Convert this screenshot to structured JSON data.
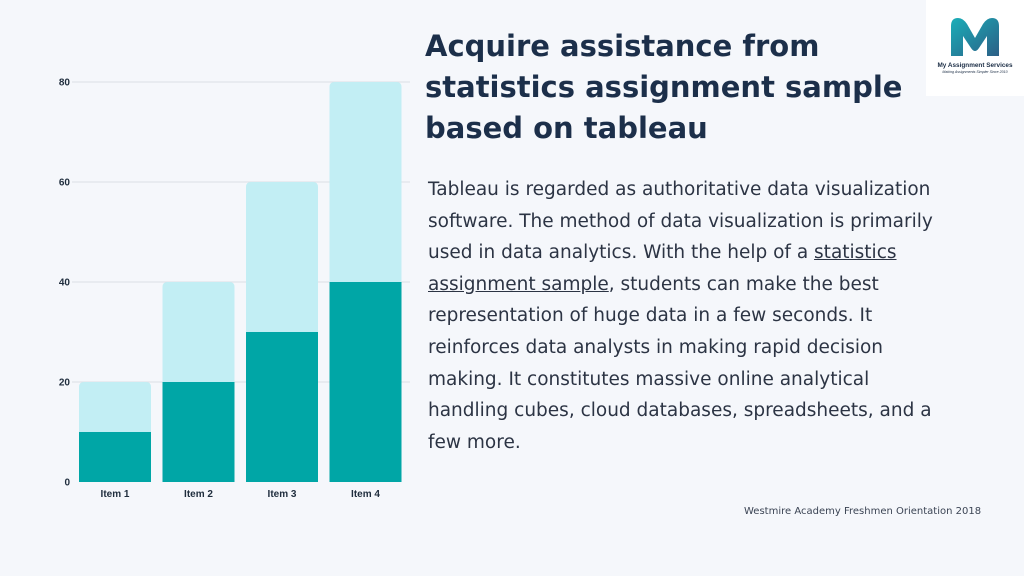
{
  "heading": {
    "line1": "Acquire assistance from",
    "line2": "statistics assignment sample",
    "line3": "based on tableau"
  },
  "paragraph": {
    "before_link": "Tableau is regarded as authoritative data visualization software. The method of data visualization is primarily used in data analytics. With the help of a ",
    "link_text": "statistics assignment sample",
    "after_link": ", students can make the best representation of huge data in a few seconds. It reinforces data analysts in making rapid decision making. It constitutes massive online analytical handling cubes, cloud databases, spreadsheets, and a few more."
  },
  "footer": {
    "text": "Westmire Academy Freshmen Orientation 2018"
  },
  "logo": {
    "name": "My Assignment Services",
    "tagline": "Making Assignments Simpler Since 2010",
    "colors": [
      "#1aaeb8",
      "#2c5f86"
    ]
  },
  "chart_data": {
    "type": "bar",
    "stacked": true,
    "categories": [
      "Item 1",
      "Item 2",
      "Item 3",
      "Item 4"
    ],
    "series": [
      {
        "values": [
          10,
          20,
          30,
          40
        ],
        "color": "#00a6a6"
      },
      {
        "values": [
          10,
          20,
          30,
          40
        ],
        "color": "#c2eef4"
      }
    ],
    "yticks": [
      0,
      20,
      40,
      60,
      80
    ],
    "ylim": [
      0,
      80
    ],
    "grid": true
  }
}
